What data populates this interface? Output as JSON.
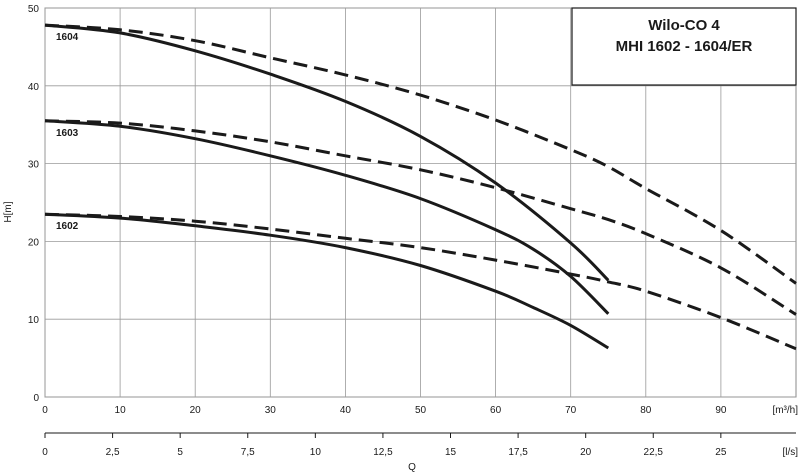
{
  "chart_data": {
    "type": "line",
    "title": [
      "Wilo-CO 4",
      "MHI 1602 - 1604/ER"
    ],
    "ylabel": "H[m]",
    "xlabel": "Q",
    "x_unit_top": "[m³/h]",
    "x_unit_bottom": "[l/s]",
    "xlim": [
      0,
      100
    ],
    "ylim": [
      0,
      50
    ],
    "xlim_secondary": [
      0,
      27.78
    ],
    "y_ticks": [
      "0",
      "10",
      "20",
      "30",
      "40",
      "50"
    ],
    "x_ticks_top": [
      "0",
      "10",
      "20",
      "30",
      "40",
      "50",
      "60",
      "70",
      "80",
      "90"
    ],
    "x_ticks_bottom": [
      "0",
      "2,5",
      "5",
      "7,5",
      "10",
      "12,5",
      "15",
      "17,5",
      "20",
      "22,5",
      "25"
    ],
    "grid": true,
    "series": [
      {
        "name": "1604",
        "style": "solid",
        "x": [
          0,
          10,
          20,
          30,
          40,
          50,
          60,
          70,
          75
        ],
        "y": [
          47.8,
          46.8,
          44.5,
          41.5,
          38.0,
          33.5,
          27.5,
          19.8,
          15.0
        ]
      },
      {
        "name": "1603",
        "style": "solid",
        "x": [
          0,
          10,
          20,
          30,
          40,
          50,
          60,
          65,
          70,
          75
        ],
        "y": [
          35.5,
          34.8,
          33.2,
          31.0,
          28.5,
          25.5,
          21.5,
          19.0,
          15.5,
          10.7
        ]
      },
      {
        "name": "1602",
        "style": "solid",
        "x": [
          0,
          10,
          20,
          30,
          40,
          50,
          60,
          65,
          70,
          75
        ],
        "y": [
          23.5,
          23.0,
          22.0,
          20.8,
          19.2,
          16.9,
          13.6,
          11.5,
          9.2,
          6.3
        ]
      },
      {
        "name": "1604",
        "style": "dashed",
        "x": [
          0,
          10,
          20,
          30,
          40,
          50,
          60,
          70,
          75,
          80,
          90,
          100
        ],
        "y": [
          47.8,
          47.2,
          45.8,
          43.6,
          41.4,
          38.8,
          35.6,
          31.8,
          29.6,
          26.8,
          21.4,
          14.6
        ]
      },
      {
        "name": "1603",
        "style": "dashed",
        "x": [
          0,
          10,
          20,
          30,
          40,
          50,
          60,
          70,
          75,
          80,
          90,
          100
        ],
        "y": [
          35.5,
          35.2,
          34.2,
          32.8,
          31.0,
          29.2,
          26.9,
          24.2,
          22.8,
          21.0,
          16.6,
          10.6
        ]
      },
      {
        "name": "1602",
        "style": "dashed",
        "x": [
          0,
          10,
          20,
          30,
          40,
          50,
          60,
          70,
          75,
          80,
          90,
          100
        ],
        "y": [
          23.5,
          23.2,
          22.6,
          21.6,
          20.4,
          19.2,
          17.6,
          15.8,
          14.8,
          13.6,
          10.2,
          6.2
        ]
      }
    ]
  }
}
